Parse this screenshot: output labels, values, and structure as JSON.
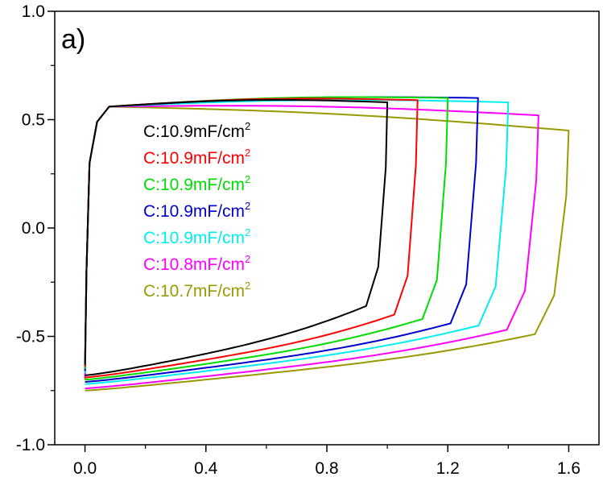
{
  "chart_data": {
    "type": "line",
    "panel_label": "a)",
    "xlabel": "",
    "ylabel": "",
    "xlim": [
      -0.1,
      1.7
    ],
    "ylim": [
      -1.0,
      1.0
    ],
    "x_ticks": [
      "0.0",
      "0.4",
      "0.8",
      "1.2",
      "1.6"
    ],
    "y_ticks": [
      "-1.0",
      "-0.5",
      "0.0",
      "0.5",
      "1.0"
    ],
    "grid": false,
    "legend_position": "upper-left inside plot",
    "series": [
      {
        "name": "C:10.9mF/cm2",
        "color": "#000000",
        "x_end": 1.0,
        "top": 0.58,
        "bottom_end": -0.36,
        "start": -0.68
      },
      {
        "name": "C:10.9mF/cm2",
        "color": "#ff0000",
        "x_end": 1.1,
        "top": 0.59,
        "bottom_end": -0.4,
        "start": -0.69
      },
      {
        "name": "C:10.9mF/cm2",
        "color": "#00dd00",
        "x_end": 1.2,
        "top": 0.6,
        "bottom_end": -0.42,
        "start": -0.7
      },
      {
        "name": "C:10.9mF/cm2",
        "color": "#0000cc",
        "x_end": 1.3,
        "top": 0.6,
        "bottom_end": -0.44,
        "start": -0.71
      },
      {
        "name": "C:10.9mF/cm2",
        "color": "#00eeee",
        "x_end": 1.4,
        "top": 0.58,
        "bottom_end": -0.45,
        "start": -0.72
      },
      {
        "name": "C:10.8mF/cm2",
        "color": "#ff00ff",
        "x_end": 1.5,
        "top": 0.52,
        "bottom_end": -0.47,
        "start": -0.74
      },
      {
        "name": "C:10.7mF/cm2",
        "color": "#999900",
        "x_end": 1.6,
        "top": 0.45,
        "bottom_end": -0.49,
        "start": -0.75
      }
    ],
    "legend": [
      {
        "prefix": "C:10.9mF/cm",
        "sup": "2",
        "color": "#000000"
      },
      {
        "prefix": "C:10.9mF/cm",
        "sup": "2",
        "color": "#ff0000"
      },
      {
        "prefix": "C:10.9mF/cm",
        "sup": "2",
        "color": "#00dd00"
      },
      {
        "prefix": "C:10.9mF/cm",
        "sup": "2",
        "color": "#0000cc"
      },
      {
        "prefix": "C:10.9mF/cm",
        "sup": "2",
        "color": "#00eeee"
      },
      {
        "prefix": "C:10.8mF/cm",
        "sup": "2",
        "color": "#ff00ff"
      },
      {
        "prefix": "C:10.7mF/cm",
        "sup": "2",
        "color": "#999900"
      }
    ]
  }
}
